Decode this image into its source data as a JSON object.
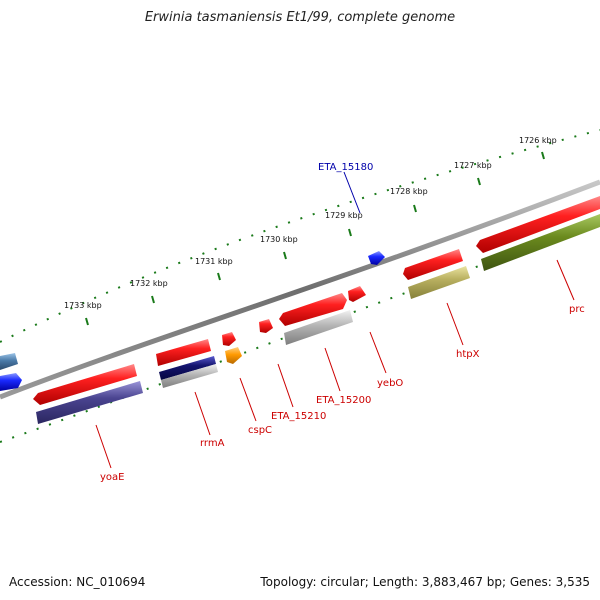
{
  "title": "Erwinia tasmaniensis Et1/99, complete genome",
  "footer": {
    "accession": "Accession: NC_010694",
    "stats": "Topology: circular; Length: 3,883,467 bp; Genes: 3,535"
  },
  "colors": {
    "red": "#e8141a",
    "navy": "#1a1a7a",
    "purple": "#4a4490",
    "grey": "#a8a8a8",
    "khaki": "#b9b060",
    "olive": "#6b8a1e",
    "orange": "#ff9a00",
    "blue": "#1a2aff",
    "steel": "#4a7aa8",
    "backbone": "#7a7a7a",
    "tick": "#1a7a1a",
    "label_red": "#cc0000",
    "label_blue": "#0000aa"
  },
  "scale_labels": [
    "1733 kbp",
    "1732 kbp",
    "1731 kbp",
    "1730 kbp",
    "1729 kbp",
    "1728 kbp",
    "1727 kbp",
    "1726 kbp"
  ],
  "gene_labels": [
    {
      "name": "yoaE",
      "color": "label_red"
    },
    {
      "name": "rrmA",
      "color": "label_red"
    },
    {
      "name": "cspC",
      "color": "label_red"
    },
    {
      "name": "ETA_15210",
      "color": "label_red"
    },
    {
      "name": "ETA_15200",
      "color": "label_red"
    },
    {
      "name": "yebO",
      "color": "label_red"
    },
    {
      "name": "htpX",
      "color": "label_red"
    },
    {
      "name": "prc",
      "color": "label_red"
    },
    {
      "name": "ETA_15180",
      "color": "label_blue"
    }
  ]
}
